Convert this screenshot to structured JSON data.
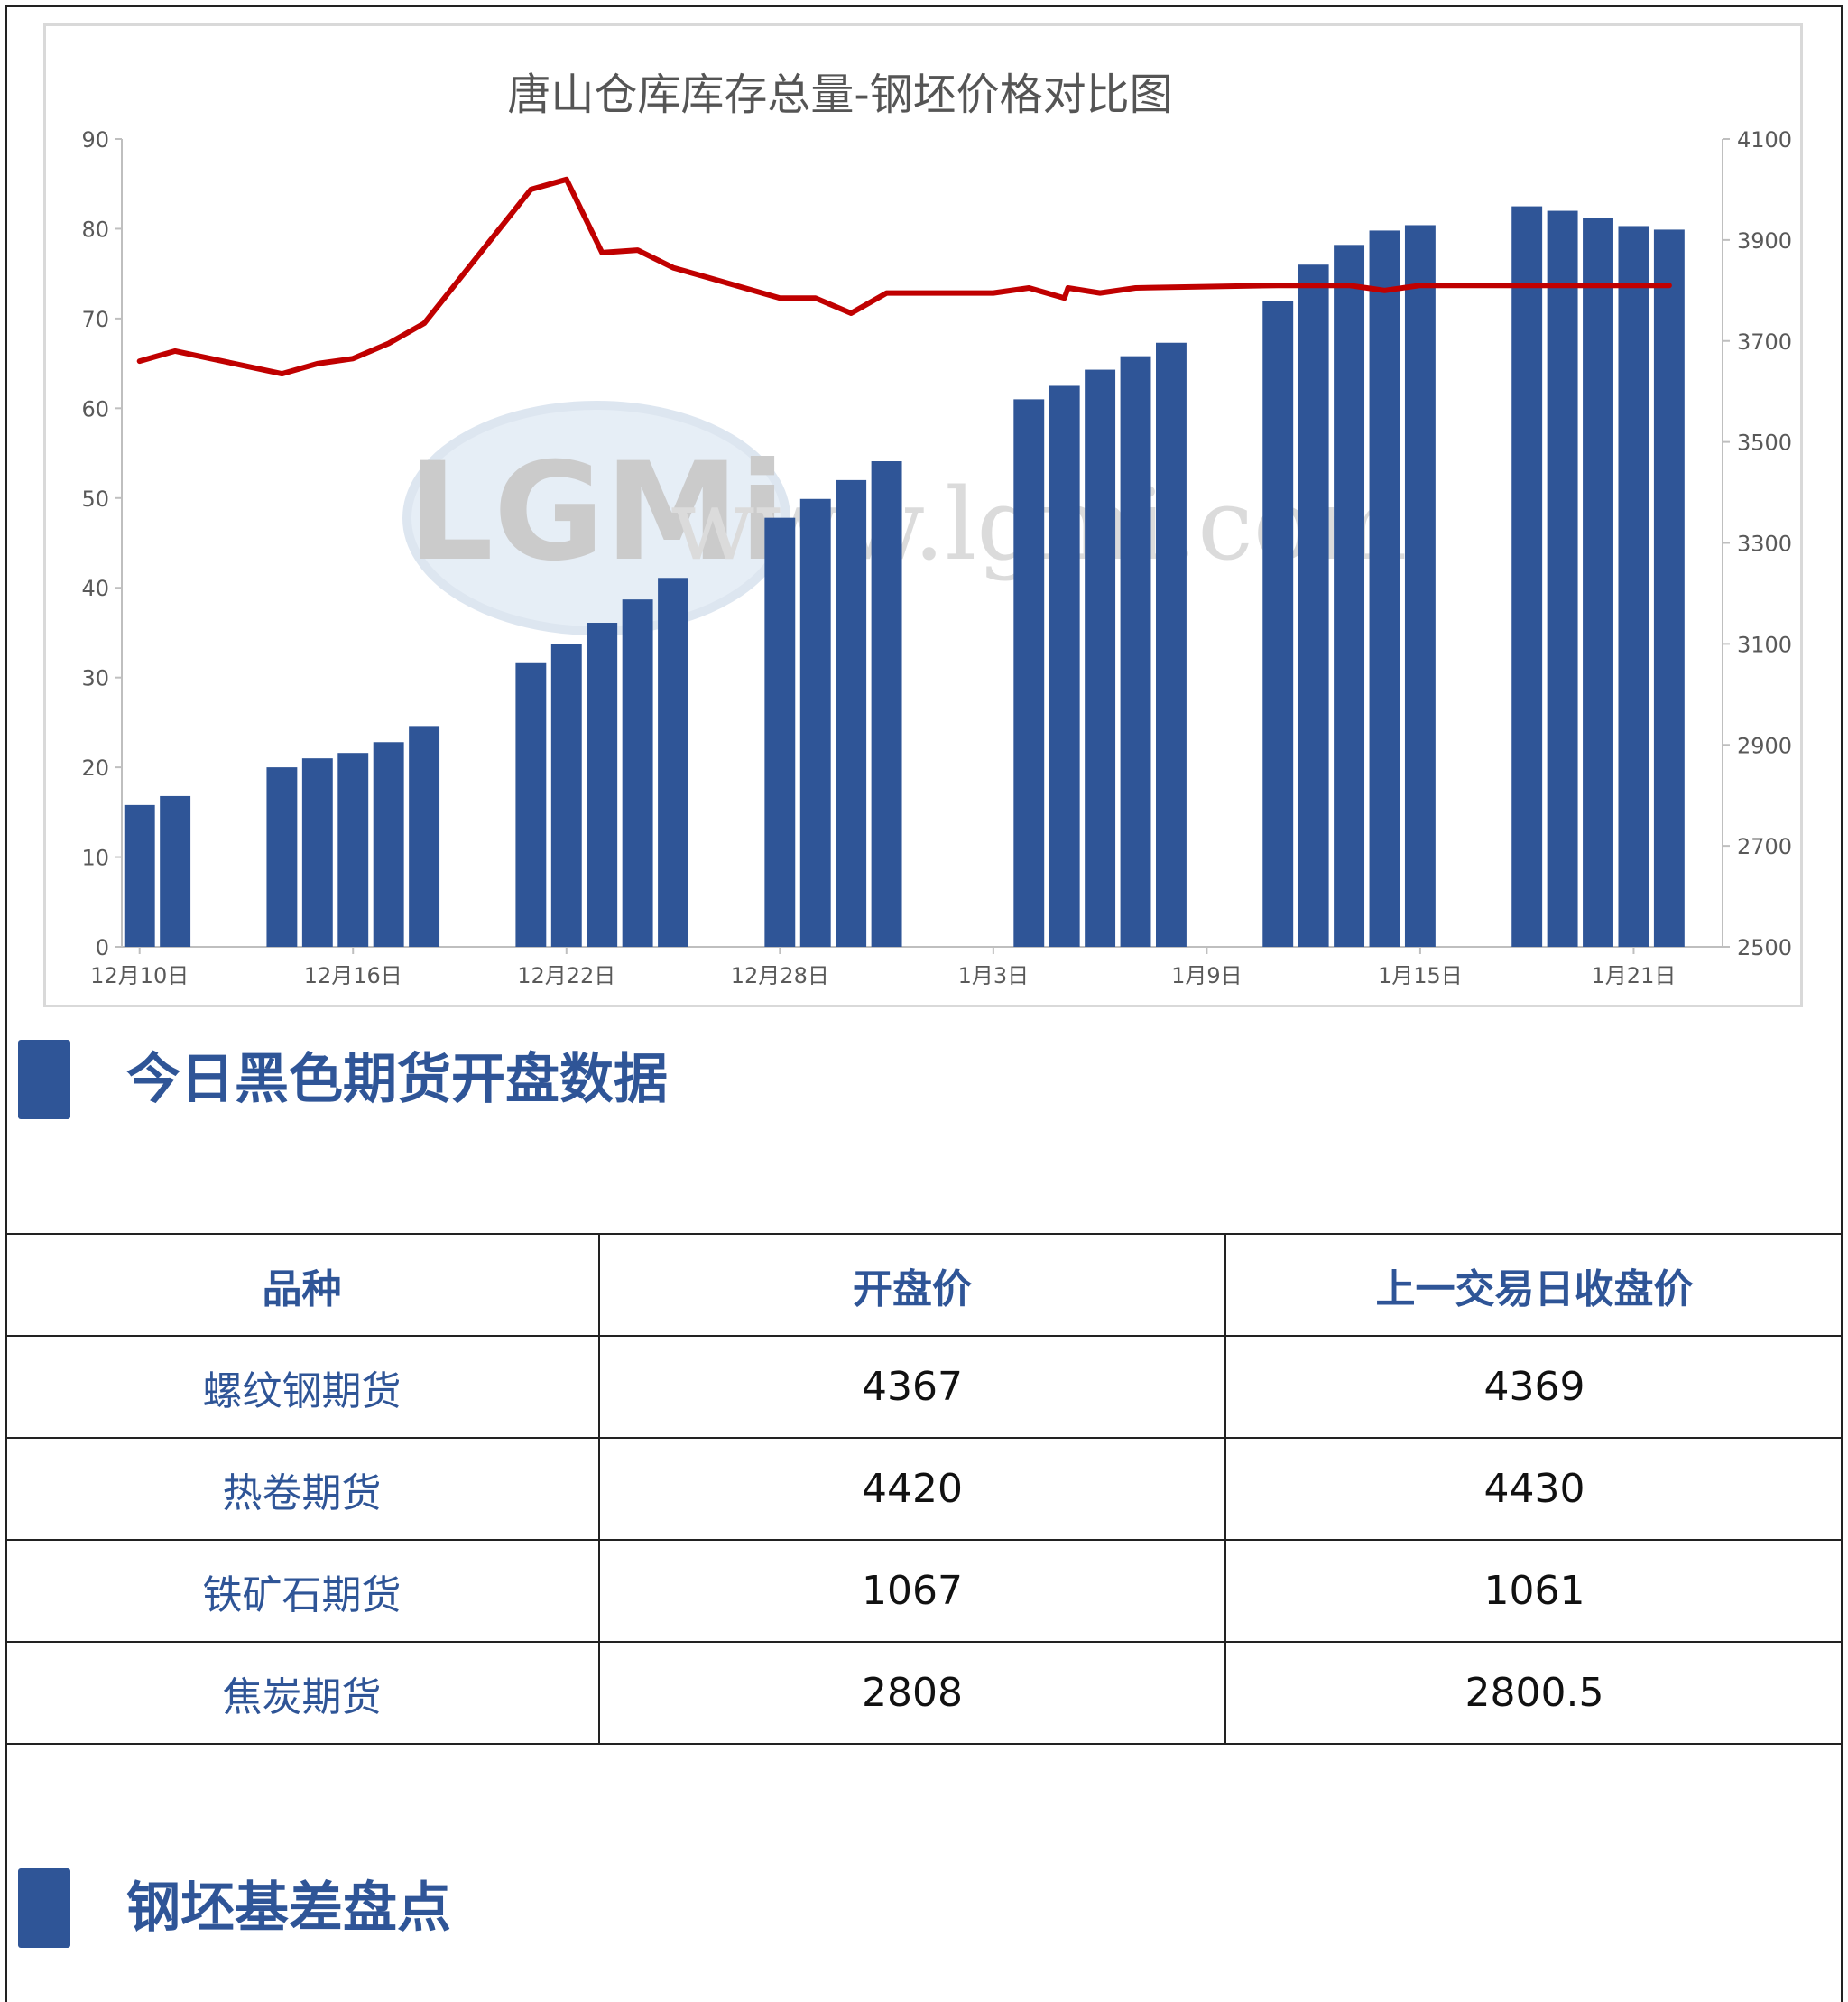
{
  "chart_data": {
    "type": "bar",
    "title": "唐山仓库库存总量-钢坯价格对比图",
    "watermark": "LGMi www.lgmi.com",
    "x_tick_labels": [
      "12月10日",
      "12月16日",
      "12月22日",
      "12月28日",
      "1月3日",
      "1月9日",
      "1月15日",
      "1月21日"
    ],
    "left_axis": {
      "min": 0,
      "max": 90,
      "ticks": [
        0,
        10,
        20,
        30,
        40,
        50,
        60,
        70,
        80,
        90
      ]
    },
    "right_axis": {
      "min": 2500,
      "max": 4100,
      "ticks": [
        2500,
        2700,
        2900,
        3100,
        3300,
        3500,
        3700,
        3900,
        4100
      ]
    },
    "x_range": [
      0,
      44
    ],
    "x_tick_positions": [
      0,
      6,
      12,
      18,
      24,
      30,
      36,
      42
    ],
    "bar_color": "#2f5597",
    "line_color": "#c00000",
    "bars": {
      "x": [
        0,
        1,
        4,
        5,
        6,
        7,
        8,
        11,
        12,
        13,
        14,
        15,
        18,
        19,
        20,
        21,
        25,
        26,
        27,
        28,
        29,
        32,
        33,
        34,
        35,
        36,
        39,
        40,
        41,
        42,
        43
      ],
      "values": [
        15.8,
        16.8,
        20.0,
        21.0,
        21.6,
        22.8,
        24.6,
        31.7,
        33.7,
        36.1,
        38.7,
        41.1,
        47.8,
        49.9,
        52.0,
        54.1,
        61.0,
        62.5,
        64.3,
        65.8,
        67.3,
        72.0,
        76.0,
        78.2,
        79.8,
        80.4,
        82.5,
        82.0,
        81.2,
        80.3,
        79.9
      ]
    },
    "line": {
      "x": [
        0,
        1,
        2,
        3,
        4,
        5,
        6,
        7,
        8,
        11,
        12,
        13,
        14,
        15,
        16,
        17,
        18,
        19,
        20,
        21,
        24,
        25,
        26,
        26.1,
        27,
        28,
        32,
        33,
        34,
        35,
        36,
        43
      ],
      "values": [
        3660,
        3680,
        3665,
        3650,
        3635,
        3655,
        3665,
        3695,
        3735,
        4000,
        4020,
        3875,
        3880,
        3845,
        3825,
        3805,
        3785,
        3785,
        3755,
        3795,
        3795,
        3805,
        3785,
        3805,
        3795,
        3805,
        3810,
        3810,
        3810,
        3800,
        3810,
        3810
      ]
    }
  },
  "section1": {
    "title": "今日黑色期货开盘数据"
  },
  "table": {
    "headers": [
      "品种",
      "开盘价",
      "上一交易日收盘价"
    ],
    "rows": [
      {
        "name": "螺纹钢期货",
        "open": "4367",
        "prev_close": "4369"
      },
      {
        "name": "热卷期货",
        "open": "4420",
        "prev_close": "4430"
      },
      {
        "name": "铁矿石期货",
        "open": "1067",
        "prev_close": "1061"
      },
      {
        "name": "焦炭期货",
        "open": "2808",
        "prev_close": "2800.5"
      }
    ]
  },
  "section2": {
    "title": "钢坯基差盘点"
  }
}
